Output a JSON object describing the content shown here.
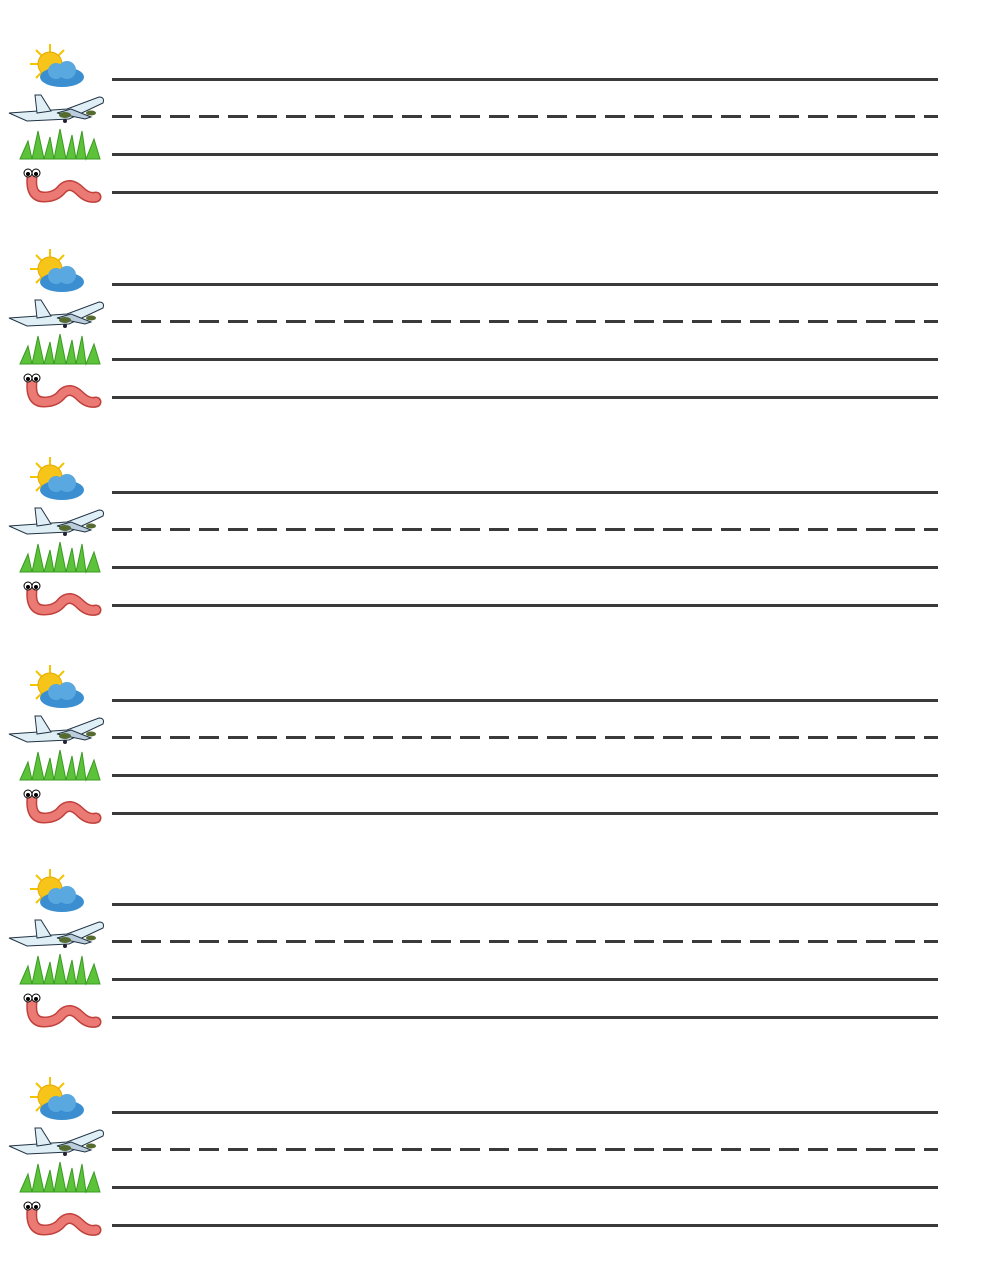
{
  "worksheet": {
    "group_count": 6,
    "guide_rows": [
      {
        "icon": "sun-cloud-icon",
        "line_style": "solid"
      },
      {
        "icon": "airplane-icon",
        "line_style": "dashed"
      },
      {
        "icon": "grass-icon",
        "line_style": "solid"
      },
      {
        "icon": "worm-icon",
        "line_style": "solid"
      }
    ],
    "colors": {
      "line": "#3a3a3a",
      "sun": "#f7d21a",
      "cloud": "#3b8fd0",
      "grass": "#5cc23a",
      "worm": "#e8706c"
    }
  }
}
